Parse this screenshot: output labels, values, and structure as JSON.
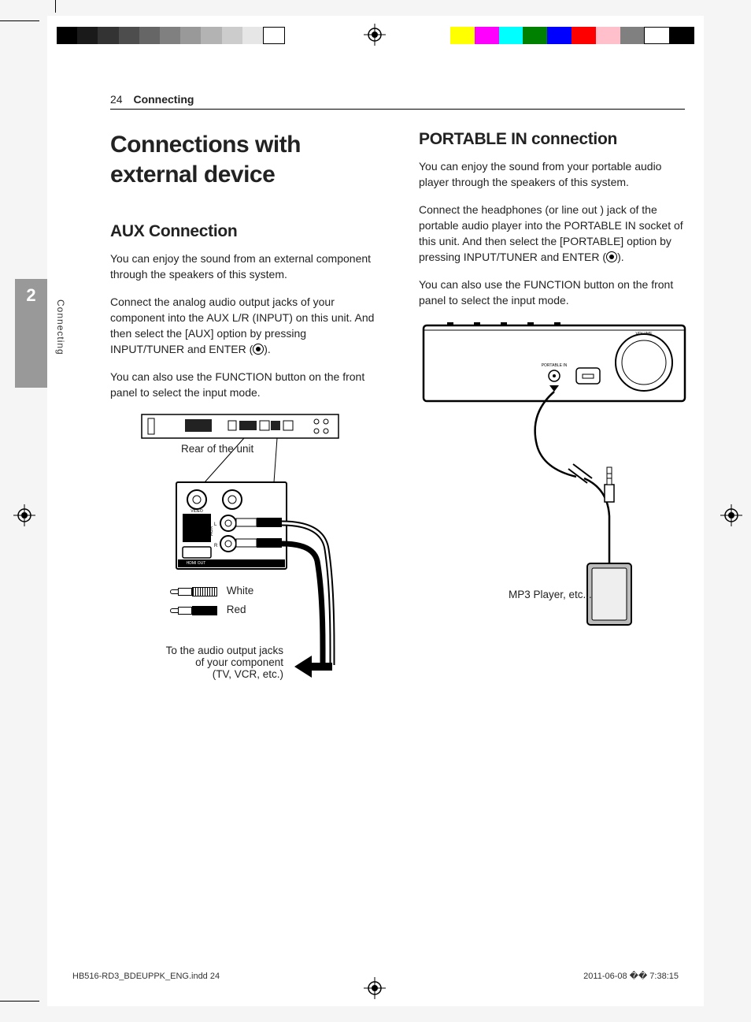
{
  "header": {
    "page_number": "24",
    "section": "Connecting"
  },
  "side_tab": {
    "chapter_number": "2",
    "chapter_label": "Connecting"
  },
  "left": {
    "h1": "Connections with external device",
    "h2": "AUX Connection",
    "p1": "You can enjoy the sound from an external component through the speakers of this system.",
    "p2a": "Connect the analog audio output jacks of your component into the AUX L/R (INPUT) on this unit. And then select the [AUX] option by pressing INPUT/TUNER and ENTER (",
    "p2b": ").",
    "p3": "You can also use the FUNCTION button on the front panel to select the input mode.",
    "diagram": {
      "rear_label": "Rear of the unit",
      "white": "White",
      "red": "Red",
      "output_text": "To the audio output jacks\nof your component\n(TV, VCR, etc.)"
    }
  },
  "right": {
    "h2": "PORTABLE IN connection",
    "p1": "You can enjoy the sound from your portable audio player through the speakers of this system.",
    "p2a": "Connect the headphones (or line out ) jack of the portable audio player into the PORTABLE IN socket of this unit. And then select the [PORTABLE] option by pressing INPUT/TUNER and ENTER (",
    "p2b": ").",
    "p3": "You can also use the FUNCTION button on the front panel to select the input mode.",
    "diagram": {
      "portable_label": "PORTABLE IN",
      "volume_label": "VOLUME",
      "mp3_label": "MP3 Player, etc..."
    }
  },
  "printmarks": {
    "grays": [
      "#000000",
      "#1a1a1a",
      "#333333",
      "#4d4d4d",
      "#666666",
      "#808080",
      "#999999",
      "#b3b3b3",
      "#cccccc",
      "#e6e6e6",
      "#ffffff"
    ],
    "colors": [
      "#ffff00",
      "#ff00ff",
      "#00ffff",
      "#008000",
      "#0000ff",
      "#ff0000",
      "#ffc0cb",
      "#808080",
      "#ffffff",
      "#000000"
    ]
  },
  "footer": {
    "left": "HB516-RD3_BDEUPPK_ENG.indd   24",
    "right": "2011-06-08   �� 7:38:15"
  }
}
